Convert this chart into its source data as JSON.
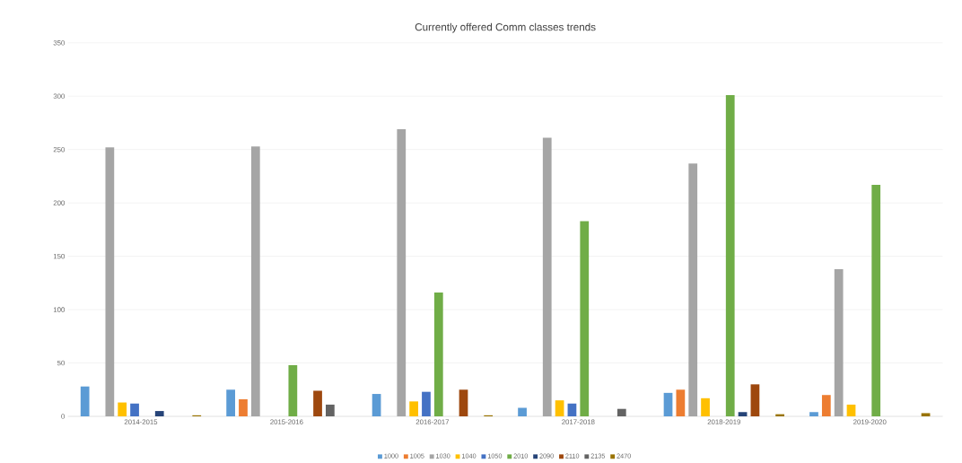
{
  "chart_data": {
    "type": "bar",
    "title": "Currently offered Comm classes trends",
    "categories": [
      "2014-2015",
      "2015-2016",
      "2016-2017",
      "2017-2018",
      "2018-2019",
      "2019-2020"
    ],
    "series": [
      {
        "name": "1000",
        "color": "#5b9bd5",
        "values": [
          28,
          25,
          21,
          8,
          22,
          4
        ]
      },
      {
        "name": "1005",
        "color": "#ed7d31",
        "values": [
          null,
          16,
          null,
          null,
          25,
          20
        ]
      },
      {
        "name": "1030",
        "color": "#a5a5a5",
        "values": [
          252,
          253,
          269,
          261,
          237,
          138
        ]
      },
      {
        "name": "1040",
        "color": "#ffc000",
        "values": [
          13,
          null,
          14,
          15,
          17,
          11
        ]
      },
      {
        "name": "1050",
        "color": "#4472c4",
        "values": [
          12,
          null,
          23,
          12,
          null,
          null
        ]
      },
      {
        "name": "2010",
        "color": "#70ad47",
        "values": [
          null,
          48,
          116,
          183,
          301,
          217
        ]
      },
      {
        "name": "2090",
        "color": "#264478",
        "values": [
          5,
          null,
          null,
          null,
          4,
          null
        ]
      },
      {
        "name": "2110",
        "color": "#9e480e",
        "values": [
          null,
          24,
          25,
          null,
          30,
          null
        ]
      },
      {
        "name": "2135",
        "color": "#636363",
        "values": [
          null,
          11,
          null,
          7,
          null,
          null
        ]
      },
      {
        "name": "2470",
        "color": "#997300",
        "values": [
          1,
          null,
          1,
          null,
          2,
          3
        ]
      }
    ],
    "ylim": [
      0,
      350
    ],
    "yticks": [
      0,
      50,
      100,
      150,
      200,
      250,
      300,
      350
    ],
    "grid": "y",
    "legend": "bottom"
  }
}
